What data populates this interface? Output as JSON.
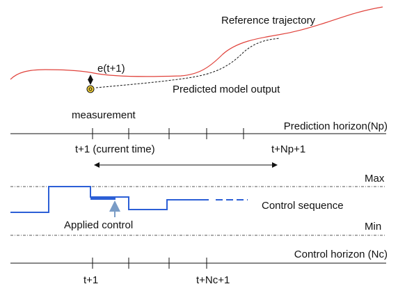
{
  "labels": {
    "reference": "Reference trajectory",
    "error": "e(t+1)",
    "predicted": "Predicted model output",
    "measurement": "measurement",
    "prediction_horizon": "Prediction horizon(Np)",
    "current_time": "t+1 (current time)",
    "np_end": "t+Np+1",
    "max": "Max",
    "control_sequence": "Control sequence",
    "applied_control": "Applied control",
    "min": "Min",
    "control_horizon": "Control horizon (Nc)",
    "nc_start": "t+1",
    "nc_end": "t+Nc+1"
  }
}
